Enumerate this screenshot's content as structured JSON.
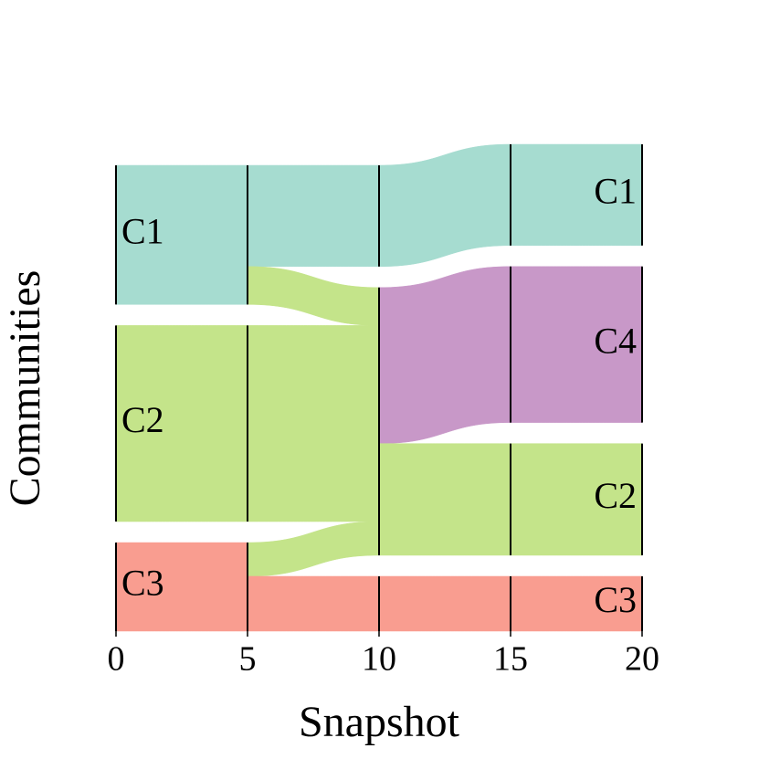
{
  "chart_data": {
    "type": "alluvial",
    "xlabel": "Snapshot",
    "ylabel": "Communities",
    "xlim": [
      0,
      20
    ],
    "xticks": [
      0,
      5,
      10,
      15,
      20
    ],
    "colors": {
      "C1": "#a6dcd0",
      "C2": "#c4e48a",
      "C3": "#f99d90",
      "C4": "#c898c8"
    },
    "snapshots": [
      [
        {
          "name": "C1",
          "size": 66
        },
        {
          "name": "C2",
          "size": 93
        },
        {
          "name": "C3",
          "size": 42
        }
      ],
      [
        {
          "name": "C1",
          "size": 66
        },
        {
          "name": "C2",
          "size": 93
        },
        {
          "name": "C3",
          "size": 42
        }
      ],
      [
        {
          "name": "C1",
          "size": 48
        },
        {
          "name": "C2",
          "size": 127
        },
        {
          "name": "C3",
          "size": 26
        }
      ],
      [
        {
          "name": "C1",
          "size": 48
        },
        {
          "name": "C4",
          "size": 74
        },
        {
          "name": "C2",
          "size": 53
        },
        {
          "name": "C3",
          "size": 26
        }
      ],
      [
        {
          "name": "C1",
          "size": 48
        },
        {
          "name": "C4",
          "size": 74
        },
        {
          "name": "C2",
          "size": 53
        },
        {
          "name": "C3",
          "size": 26
        }
      ]
    ],
    "flows": [
      [
        {
          "source": "C1",
          "target": "C1",
          "value": 66
        },
        {
          "source": "C2",
          "target": "C2",
          "value": 93
        },
        {
          "source": "C3",
          "target": "C3",
          "value": 42
        }
      ],
      [
        {
          "source": "C1",
          "target": "C1",
          "value": 48
        },
        {
          "source": "C1",
          "target": "C2",
          "value": 18
        },
        {
          "source": "C2",
          "target": "C2",
          "value": 93
        },
        {
          "source": "C3",
          "target": "C2",
          "value": 16
        },
        {
          "source": "C3",
          "target": "C3",
          "value": 26
        }
      ],
      [
        {
          "source": "C1",
          "target": "C1",
          "value": 48
        },
        {
          "source": "C2",
          "target": "C4",
          "value": 74
        },
        {
          "source": "C2",
          "target": "C2",
          "value": 53
        },
        {
          "source": "C3",
          "target": "C3",
          "value": 26
        }
      ],
      [
        {
          "source": "C1",
          "target": "C1",
          "value": 48
        },
        {
          "source": "C4",
          "target": "C4",
          "value": 74
        },
        {
          "source": "C2",
          "target": "C2",
          "value": 53
        },
        {
          "source": "C3",
          "target": "C3",
          "value": 26
        }
      ]
    ]
  }
}
